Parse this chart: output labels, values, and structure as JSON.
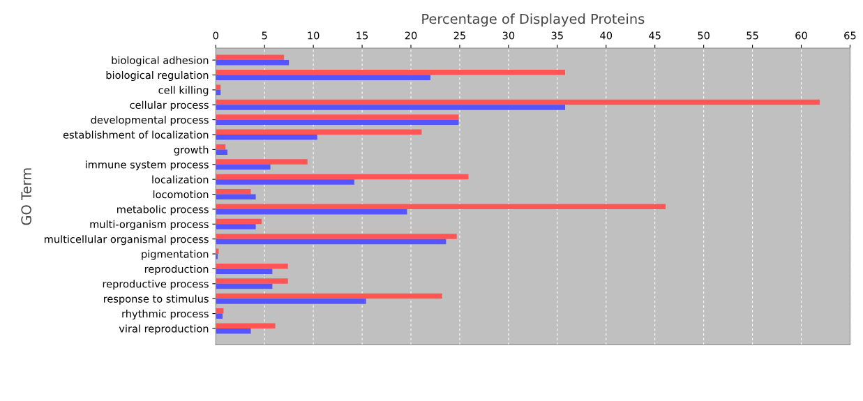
{
  "chart_data": {
    "type": "bar",
    "orientation": "horizontal",
    "xlabel": "Percentage of Displayed Proteins",
    "ylabel": "GO Term",
    "categories": [
      "biological adhesion",
      "biological regulation",
      "cell killing",
      "cellular process",
      "developmental process",
      "establishment of localization",
      "growth",
      "immune system process",
      "localization",
      "locomotion",
      "metabolic process",
      "multi-organism process",
      "multicellular organismal process",
      "pigmentation",
      "reproduction",
      "reproductive process",
      "response to stimulus",
      "rhythmic process",
      "viral reproduction"
    ],
    "series": [
      {
        "color": "#ff5555",
        "values": [
          7.0,
          35.8,
          0.5,
          61.9,
          24.9,
          21.1,
          1.0,
          9.4,
          25.9,
          3.6,
          46.1,
          4.7,
          24.7,
          0.3,
          7.4,
          7.4,
          23.2,
          0.8,
          6.1
        ]
      },
      {
        "color": "#5555ff",
        "values": [
          7.5,
          22.0,
          0.5,
          35.8,
          24.9,
          10.4,
          1.2,
          5.6,
          14.2,
          4.1,
          19.6,
          4.1,
          23.6,
          0.2,
          5.8,
          5.8,
          15.4,
          0.7,
          3.6
        ]
      }
    ],
    "xlim": [
      0,
      65
    ],
    "xticks": [
      0,
      5,
      10,
      15,
      20,
      25,
      30,
      35,
      40,
      45,
      50,
      55,
      60,
      65
    ],
    "grid": "x"
  }
}
